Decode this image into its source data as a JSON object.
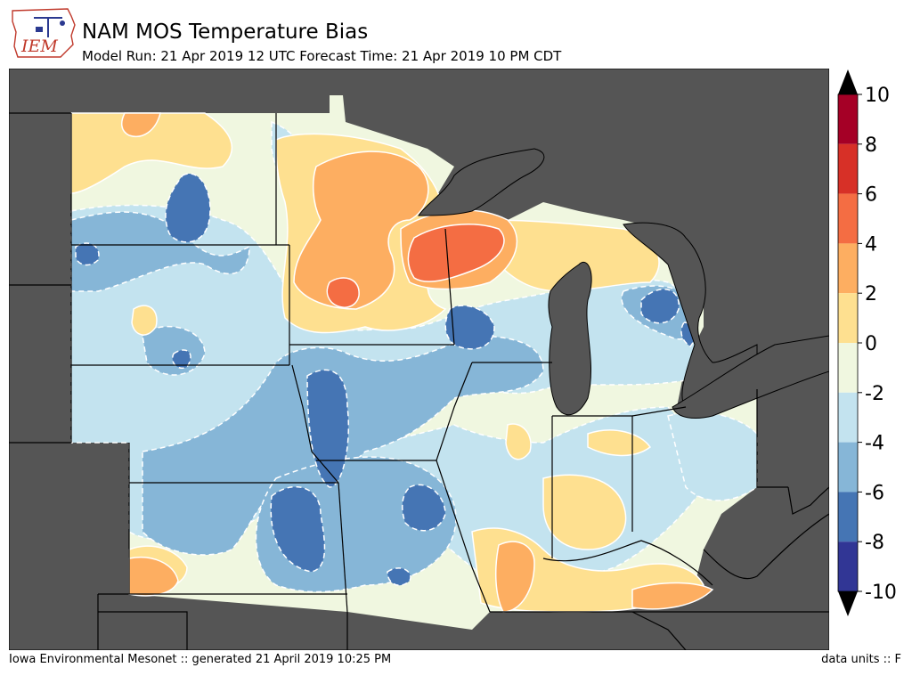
{
  "logo": {
    "text": "IEM"
  },
  "header": {
    "title": "NAM MOS Temperature Bias",
    "subtitle": "Model Run: 21 Apr 2019 12 UTC Forecast Time: 21 Apr 2019 10 PM CDT"
  },
  "colorbar": {
    "levels": [
      "10",
      "8",
      "6",
      "4",
      "2",
      "0",
      "-2",
      "-4",
      "-6",
      "-8",
      "-10"
    ],
    "colors": [
      "#a50026",
      "#d73027",
      "#f46d43",
      "#fdae61",
      "#fee090",
      "#f0f7e0",
      "#c3e3ef",
      "#86b6d7",
      "#4575b4",
      "#313695"
    ],
    "ocean_land_color": "#555555"
  },
  "footer": {
    "left": "Iowa Environmental Mesonet :: generated 21 April 2019 10:25 PM",
    "right": "data units :: F"
  }
}
